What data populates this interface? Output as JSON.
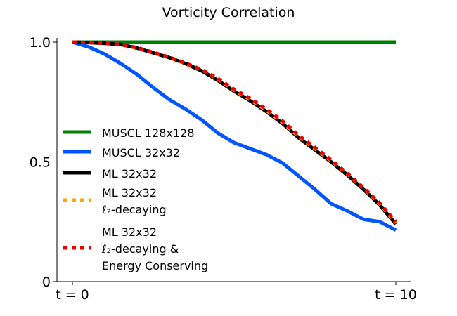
{
  "chart_data": {
    "type": "line",
    "title": "Vorticity Correlation",
    "xlabel": "",
    "ylabel": "",
    "xlim": [
      -0.5,
      10.5
    ],
    "ylim": [
      0,
      1.0
    ],
    "x_ticks": [
      {
        "value": 0,
        "label": "t = 0"
      },
      {
        "value": 10,
        "label": "t = 10"
      }
    ],
    "y_ticks": [
      {
        "value": 0,
        "label": "0"
      },
      {
        "value": 0.5,
        "label": "0.5"
      },
      {
        "value": 1.0,
        "label": "1.0"
      }
    ],
    "grid": false,
    "legend_position": "center-left",
    "series": [
      {
        "name": "MUSCL 128x128",
        "color": "#008000",
        "style": "solid",
        "x": [
          0,
          10
        ],
        "y": [
          1.0,
          1.0
        ]
      },
      {
        "name": "MUSCL 32x32",
        "color": "#0055ff",
        "style": "solid",
        "x": [
          0,
          0.5,
          1.0,
          1.5,
          2.0,
          2.5,
          3.0,
          3.5,
          4.0,
          4.5,
          5.0,
          5.5,
          6.0,
          6.5,
          7.0,
          7.5,
          8.0,
          8.5,
          9.0,
          9.5,
          10.0
        ],
        "y": [
          1.0,
          0.98,
          0.95,
          0.91,
          0.865,
          0.81,
          0.76,
          0.72,
          0.675,
          0.62,
          0.58,
          0.555,
          0.53,
          0.495,
          0.44,
          0.385,
          0.325,
          0.295,
          0.26,
          0.25,
          0.215
        ]
      },
      {
        "name": "ML 32x32",
        "color": "#000000",
        "style": "solid",
        "x": [
          0,
          0.5,
          1.0,
          1.5,
          2.0,
          2.5,
          3.0,
          3.5,
          4.0,
          4.5,
          5.0,
          5.5,
          6.0,
          6.5,
          7.0,
          7.5,
          8.0,
          8.5,
          9.0,
          9.5,
          10.0
        ],
        "y": [
          1.0,
          0.998,
          0.995,
          0.99,
          0.975,
          0.955,
          0.935,
          0.91,
          0.88,
          0.84,
          0.795,
          0.755,
          0.71,
          0.66,
          0.6,
          0.55,
          0.5,
          0.445,
          0.385,
          0.32,
          0.24
        ]
      },
      {
        "name": "ML 32x32\nℓ₂-decaying",
        "label_lines": [
          "ML 32x32",
          "ℓ₂-decaying"
        ],
        "color": "#ffa500",
        "style": "dotted",
        "x": [
          0,
          0.5,
          1.0,
          1.5,
          2.0,
          2.5,
          3.0,
          3.5,
          4.0,
          4.5,
          5.0,
          5.5,
          6.0,
          6.5,
          7.0,
          7.5,
          8.0,
          8.5,
          9.0,
          9.5,
          10.0
        ],
        "y": [
          1.0,
          0.998,
          0.996,
          0.99,
          0.975,
          0.955,
          0.935,
          0.91,
          0.885,
          0.845,
          0.8,
          0.76,
          0.715,
          0.665,
          0.605,
          0.555,
          0.505,
          0.45,
          0.39,
          0.325,
          0.245
        ]
      },
      {
        "name": "ML 32x32\nℓ₂-decaying &\nEnergy Conserving",
        "label_lines": [
          "ML 32x32",
          "ℓ₂-decaying &",
          "Energy Conserving"
        ],
        "color": "#ee0000",
        "style": "dotted",
        "x": [
          0,
          0.5,
          1.0,
          1.5,
          2.0,
          2.5,
          3.0,
          3.5,
          4.0,
          4.5,
          5.0,
          5.5,
          6.0,
          6.5,
          7.0,
          7.5,
          8.0,
          8.5,
          9.0,
          9.5,
          10.0
        ],
        "y": [
          1.0,
          0.998,
          0.996,
          0.99,
          0.977,
          0.957,
          0.937,
          0.912,
          0.885,
          0.848,
          0.803,
          0.765,
          0.72,
          0.67,
          0.61,
          0.56,
          0.508,
          0.452,
          0.392,
          0.328,
          0.25
        ]
      }
    ]
  }
}
